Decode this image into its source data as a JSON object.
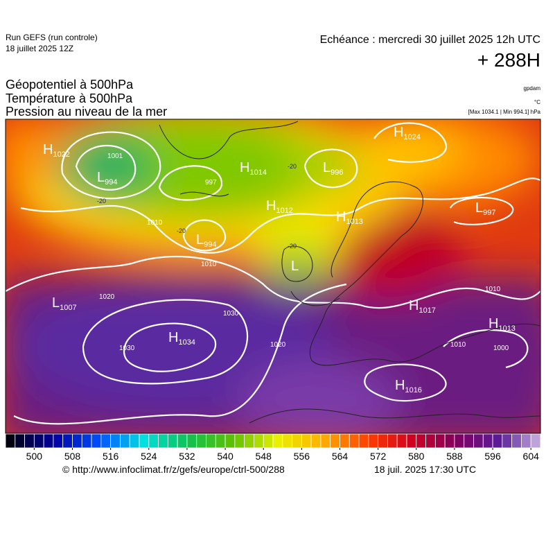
{
  "header": {
    "run": "Run GEFS (run controle)",
    "run_date": "18 juillet 2025 12Z",
    "echeance": "Echéance : mercredi 30 juillet 2025 12h UTC",
    "lead": "+ 288H",
    "fields": [
      "Géopotentiel à 500hPa",
      "Température à 500hPa",
      "Pression au niveau de la mer"
    ],
    "unit_geo": "gpdam",
    "unit_temp": "°C",
    "pressure_range": "[Max 1034.1 | Min 994.1] hPa"
  },
  "map": {
    "centers": [
      {
        "kind": "H",
        "value": 1022
      },
      {
        "kind": "L",
        "value": 994
      },
      {
        "kind": "H",
        "value": 1014
      },
      {
        "kind": "L",
        "value": 996
      },
      {
        "kind": "H",
        "value": 1024
      },
      {
        "kind": "H",
        "value": 1012
      },
      {
        "kind": "H",
        "value": 1013
      },
      {
        "kind": "L",
        "value": 997
      },
      {
        "kind": "L",
        "value": 994
      },
      {
        "kind": "L"
      },
      {
        "kind": "H",
        "value": 1017
      },
      {
        "kind": "H",
        "value": 1013
      },
      {
        "kind": "L",
        "value": 1007
      },
      {
        "kind": "H",
        "value": 1034
      },
      {
        "kind": "H",
        "value": 1016
      }
    ],
    "isobar_labels": [
      1001,
      997,
      1010,
      1010,
      1020,
      1030,
      1030,
      1020,
      1010,
      1010,
      1000
    ],
    "temp_labels": [
      -20,
      -20,
      -20,
      -20
    ]
  },
  "colorbar": {
    "min": 494,
    "max": 606,
    "step": 2,
    "ticks": [
      500,
      508,
      516,
      524,
      532,
      540,
      548,
      556,
      564,
      572,
      580,
      588,
      596,
      604
    ],
    "stops": [
      "#000010",
      "#0000a0",
      "#0050ff",
      "#00e0e0",
      "#10c050",
      "#60c000",
      "#e8f000",
      "#ffb000",
      "#ff4000",
      "#d00020",
      "#800060",
      "#5a1c9a",
      "#d8c8ec"
    ]
  },
  "footer": {
    "source": "© http://www.infoclimat.fr/z/gefs/europe/ctrl-500/288",
    "generated": "18 juil. 2025 17:30 UTC"
  }
}
